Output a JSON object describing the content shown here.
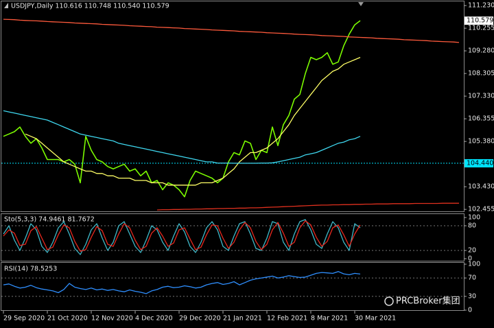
{
  "watermark": "PRCBroker集团",
  "chart_data": [
    {
      "type": "line",
      "title": "USDJPY,Daily 110.616 110.748 110.540 110.579",
      "ylim": [
        102.37,
        111.41
      ],
      "yticks": [
        {
          "value": 111.23,
          "label": "111.230"
        },
        {
          "value": 110.255,
          "label": "110.255"
        },
        {
          "value": 109.28,
          "label": "109.280"
        },
        {
          "value": 108.305,
          "label": "108.305"
        },
        {
          "value": 107.33,
          "label": "107.330"
        },
        {
          "value": 106.355,
          "label": "106.355"
        },
        {
          "value": 105.38,
          "label": "105.380"
        },
        {
          "value": 103.43,
          "label": "103.430"
        },
        {
          "value": 102.455,
          "label": "102.455"
        }
      ],
      "last_price": {
        "value": 110.579,
        "label": "110.579"
      },
      "hline": {
        "value": 104.44,
        "label": "104.440",
        "color": "#00e5ff"
      },
      "series": [
        {
          "color": "#7cfc00",
          "values": [
            105.6,
            105.7,
            105.8,
            106.0,
            105.6,
            105.3,
            105.5,
            105.1,
            104.6,
            104.6,
            104.6,
            104.5,
            104.6,
            104.4,
            103.6,
            105.6,
            105.0,
            104.6,
            104.5,
            104.3,
            104.2,
            104.3,
            104.4,
            104.1,
            104.2,
            103.9,
            104.1,
            103.6,
            103.7,
            103.3,
            103.6,
            103.5,
            103.3,
            103.0,
            103.7,
            104.1,
            104.0,
            103.9,
            103.8,
            103.6,
            103.8,
            104.5,
            104.9,
            104.8,
            105.4,
            105.3,
            104.6,
            105.0,
            104.9,
            106.0,
            105.2,
            106.1,
            106.5,
            107.2,
            107.4,
            108.3,
            109.0,
            108.9,
            109.0,
            109.2,
            108.7,
            108.8,
            109.5,
            110.0,
            110.4,
            110.579,
            null,
            null,
            null,
            null,
            null,
            null,
            null,
            null,
            null,
            null,
            null,
            null,
            null,
            null,
            null,
            null,
            null,
            null
          ]
        },
        {
          "color": "#ffff66",
          "values": [
            null,
            null,
            null,
            null,
            105.7,
            105.6,
            105.5,
            105.3,
            105.1,
            104.9,
            104.7,
            104.5,
            104.4,
            104.3,
            104.2,
            104.1,
            104.1,
            104.0,
            104.0,
            103.9,
            103.9,
            103.8,
            103.8,
            103.8,
            103.7,
            103.7,
            103.7,
            103.6,
            103.6,
            103.6,
            103.5,
            103.5,
            103.5,
            103.5,
            103.5,
            103.5,
            103.6,
            103.6,
            103.6,
            103.7,
            103.8,
            104.0,
            104.2,
            104.5,
            104.7,
            104.9,
            104.9,
            105.0,
            105.1,
            105.3,
            105.5,
            105.8,
            106.1,
            106.5,
            106.8,
            107.1,
            107.4,
            107.7,
            108.0,
            108.2,
            108.4,
            108.5,
            108.7,
            108.8,
            108.9,
            109.0,
            null,
            null,
            null,
            null,
            null,
            null,
            null,
            null,
            null,
            null,
            null,
            null,
            null,
            null,
            null,
            null,
            null,
            null
          ]
        },
        {
          "color": "#3fd8f0",
          "values": [
            106.7,
            106.65,
            106.6,
            106.55,
            106.5,
            106.45,
            106.4,
            106.35,
            106.3,
            106.2,
            106.1,
            106.0,
            105.9,
            105.8,
            105.7,
            105.65,
            105.6,
            105.55,
            105.5,
            105.45,
            105.4,
            105.3,
            105.25,
            105.2,
            105.15,
            105.1,
            105.05,
            105.0,
            104.95,
            104.9,
            104.85,
            104.8,
            104.75,
            104.7,
            104.65,
            104.6,
            104.55,
            104.5,
            104.5,
            104.45,
            104.45,
            104.45,
            104.44,
            104.44,
            104.44,
            104.44,
            104.44,
            104.45,
            104.45,
            104.46,
            104.5,
            104.55,
            104.6,
            104.65,
            104.7,
            104.8,
            104.85,
            104.9,
            105.0,
            105.1,
            105.2,
            105.3,
            105.35,
            105.45,
            105.5,
            105.6,
            null,
            null,
            null,
            null,
            null,
            null,
            null,
            null,
            null,
            null,
            null,
            null,
            null,
            null,
            null,
            null,
            null,
            null
          ]
        },
        {
          "color": "#ff5a3c",
          "values": [
            110.64,
            110.63,
            110.62,
            110.6,
            110.59,
            110.58,
            110.57,
            110.56,
            110.54,
            110.53,
            110.52,
            110.51,
            110.5,
            110.48,
            110.47,
            110.46,
            110.45,
            110.44,
            110.42,
            110.41,
            110.4,
            110.39,
            110.38,
            110.36,
            110.35,
            110.34,
            110.33,
            110.32,
            110.3,
            110.29,
            110.28,
            110.27,
            110.26,
            110.24,
            110.23,
            110.22,
            110.21,
            110.2,
            110.18,
            110.17,
            110.16,
            110.15,
            110.14,
            110.12,
            110.11,
            110.1,
            110.09,
            110.08,
            110.06,
            110.05,
            110.04,
            110.03,
            110.02,
            110.0,
            109.99,
            109.98,
            109.97,
            109.96,
            109.94,
            109.93,
            109.92,
            109.91,
            109.9,
            109.88,
            109.87,
            109.86,
            109.85,
            109.84,
            109.82,
            109.81,
            109.8,
            109.79,
            109.78,
            109.76,
            109.75,
            109.74,
            109.73,
            109.72,
            109.7,
            109.69,
            109.68,
            109.67,
            109.66,
            109.64
          ]
        },
        {
          "color": "#e0301e",
          "values": [
            null,
            null,
            null,
            null,
            null,
            null,
            null,
            null,
            null,
            null,
            null,
            null,
            null,
            null,
            null,
            null,
            null,
            null,
            null,
            null,
            null,
            null,
            null,
            null,
            null,
            null,
            null,
            null,
            102.43,
            102.44,
            102.44,
            102.45,
            102.45,
            102.46,
            102.46,
            102.47,
            102.47,
            102.48,
            102.48,
            102.49,
            102.49,
            102.5,
            102.5,
            102.51,
            102.51,
            102.52,
            102.52,
            102.53,
            102.54,
            102.55,
            102.56,
            102.57,
            102.58,
            102.59,
            102.6,
            102.61,
            102.62,
            102.63,
            102.64,
            102.64,
            102.65,
            102.65,
            102.66,
            102.66,
            102.67,
            102.67,
            102.68,
            102.68,
            102.69,
            102.69,
            102.69,
            102.7,
            102.7,
            102.7,
            102.7,
            102.71,
            102.71,
            102.71,
            102.71,
            102.71,
            102.72,
            102.72,
            102.72,
            102.72
          ]
        }
      ]
    },
    {
      "type": "line",
      "title": "Sto(5,3,3) 74.9461 81.7672",
      "ylim": [
        0,
        100
      ],
      "yticks": [
        100,
        80,
        20,
        0
      ],
      "series": [
        {
          "color": "#3fb8c8",
          "values": [
            60,
            80,
            45,
            20,
            50,
            85,
            70,
            30,
            15,
            40,
            75,
            90,
            60,
            25,
            10,
            35,
            70,
            85,
            50,
            20,
            40,
            80,
            90,
            60,
            30,
            15,
            45,
            80,
            70,
            40,
            20,
            55,
            85,
            65,
            30,
            15,
            40,
            75,
            90,
            70,
            30,
            20,
            55,
            85,
            90,
            60,
            25,
            20,
            50,
            90,
            85,
            40,
            20,
            60,
            90,
            95,
            70,
            35,
            25,
            60,
            90,
            75,
            40,
            20,
            85,
            74.9461,
            null,
            null,
            null,
            null,
            null,
            null,
            null,
            null,
            null,
            null,
            null,
            null,
            null,
            null,
            null,
            null,
            null,
            null
          ]
        },
        {
          "color": "#e8281e",
          "values": [
            55,
            70,
            62,
            32,
            35,
            68,
            78,
            50,
            22,
            28,
            58,
            82,
            75,
            42,
            18,
            22,
            52,
            78,
            68,
            35,
            30,
            60,
            85,
            75,
            45,
            22,
            30,
            62,
            75,
            55,
            30,
            38,
            70,
            75,
            48,
            22,
            28,
            58,
            82,
            80,
            50,
            25,
            40,
            70,
            88,
            75,
            42,
            22,
            35,
            70,
            88,
            62,
            30,
            40,
            75,
            92,
            82,
            52,
            30,
            42,
            75,
            82,
            58,
            30,
            60,
            81.7672,
            null,
            null,
            null,
            null,
            null,
            null,
            null,
            null,
            null,
            null,
            null,
            null,
            null,
            null,
            null,
            null,
            null,
            null
          ]
        }
      ]
    },
    {
      "type": "line",
      "title": "RSI(14) 78.5253",
      "ylim": [
        0,
        100
      ],
      "yticks": [
        100,
        70,
        30,
        0
      ],
      "categories": [
        "29 Sep 2020",
        null,
        null,
        null,
        null,
        null,
        null,
        null,
        "21 Oct 2020",
        null,
        null,
        null,
        null,
        null,
        null,
        null,
        "12 Nov 2020",
        null,
        null,
        null,
        null,
        null,
        null,
        null,
        "4 Dec 2020",
        null,
        null,
        null,
        null,
        null,
        null,
        null,
        "29 Dec 2020",
        null,
        null,
        null,
        null,
        null,
        null,
        null,
        "21 Jan 2021",
        null,
        null,
        null,
        null,
        null,
        null,
        null,
        "12 Feb 2021",
        null,
        null,
        null,
        null,
        null,
        null,
        null,
        "8 Mar 2021",
        null,
        null,
        null,
        null,
        null,
        null,
        null,
        "30 Mar 2021",
        null,
        null,
        null,
        null,
        null,
        null,
        null,
        null,
        null,
        null,
        null,
        null,
        null,
        null,
        null,
        null,
        null,
        null,
        null
      ],
      "series": [
        {
          "color": "#2f8fff",
          "values": [
            55,
            57,
            52,
            48,
            50,
            54,
            49,
            46,
            44,
            42,
            38,
            45,
            58,
            50,
            47,
            45,
            48,
            44,
            46,
            43,
            45,
            42,
            40,
            44,
            41,
            39,
            36,
            42,
            45,
            50,
            52,
            49,
            50,
            53,
            51,
            48,
            50,
            55,
            58,
            60,
            56,
            58,
            62,
            55,
            60,
            65,
            68,
            70,
            72,
            74,
            70,
            72,
            75,
            73,
            71,
            72,
            76,
            80,
            82,
            81,
            80,
            84,
            79,
            77,
            80,
            78.5253,
            null,
            null,
            null,
            null,
            null,
            null,
            null,
            null,
            null,
            null,
            null,
            null,
            null,
            null,
            null,
            null,
            null,
            null
          ]
        }
      ]
    }
  ]
}
